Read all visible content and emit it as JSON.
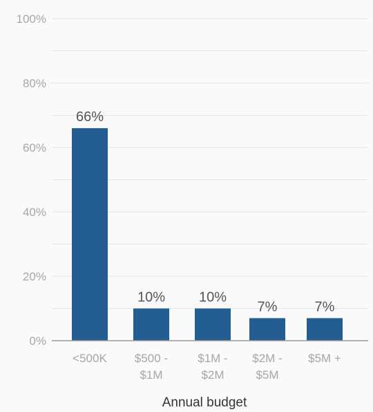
{
  "chart_data": {
    "type": "bar",
    "categories": [
      [
        "<500K"
      ],
      [
        "$500 -",
        "$1M"
      ],
      [
        "$1M -",
        "$2M"
      ],
      [
        "$2M -",
        "$5M"
      ],
      [
        "$5M +"
      ]
    ],
    "values": [
      66,
      10,
      10,
      7,
      7
    ],
    "data_labels": [
      "66%",
      "10%",
      "10%",
      "7%",
      "7%"
    ],
    "xlabel": "Annual budget",
    "ylabel": "",
    "ylim": [
      0,
      100
    ],
    "yticks": [
      0,
      20,
      40,
      60,
      80,
      100
    ],
    "ytick_labels": [
      "0%",
      "20%",
      "40%",
      "60%",
      "80%",
      "100%"
    ],
    "grid": true,
    "colors": {
      "bar": "#245d91",
      "grid": "#e4e4e4",
      "axis": "#999999",
      "background": "#fafafa"
    }
  }
}
